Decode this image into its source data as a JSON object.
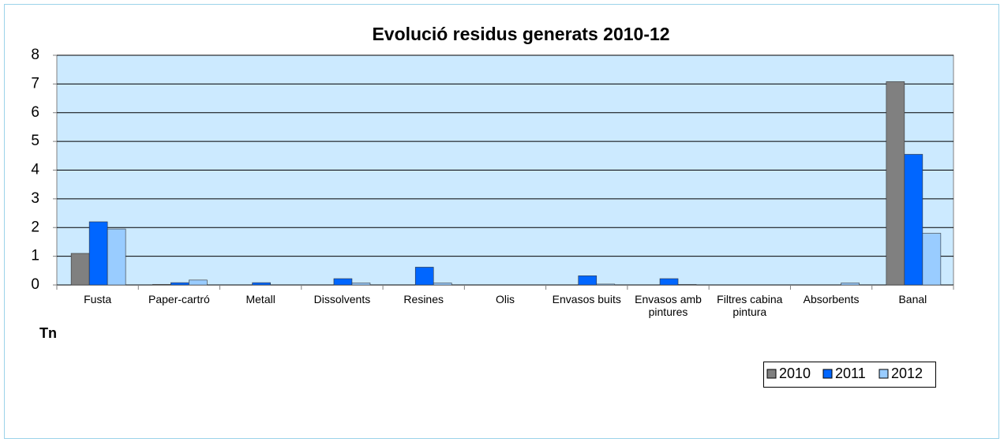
{
  "chart_data": {
    "type": "bar",
    "title": "Evolució residus generats 2010-12",
    "y_label": "Tn",
    "categories": [
      "Fusta",
      "Paper-cartró",
      "Metall",
      "Dissolvents",
      "Resines",
      "Olis",
      "Envasos buits",
      "Envasos amb pintures",
      "Filtres cabina pintura",
      "Absorbents",
      "Banal"
    ],
    "series": [
      {
        "name": "2010",
        "color": "#808080",
        "values": [
          1.1,
          0.02,
          0,
          0,
          0,
          0,
          0,
          0,
          0,
          0,
          7.08
        ]
      },
      {
        "name": "2011",
        "color": "#0066ff",
        "values": [
          2.2,
          0.08,
          0.08,
          0.22,
          0.62,
          0,
          0.32,
          0.22,
          0,
          0,
          4.55
        ]
      },
      {
        "name": "2012",
        "color": "#99ccff",
        "values": [
          1.95,
          0.17,
          0,
          0.07,
          0.07,
          0,
          0.03,
          0.02,
          0,
          0.07,
          1.8
        ]
      }
    ],
    "ylim": [
      0,
      8
    ],
    "yticks": [
      0,
      1,
      2,
      3,
      4,
      5,
      6,
      7,
      8
    ],
    "grid": true,
    "legend": "bottom-right"
  }
}
